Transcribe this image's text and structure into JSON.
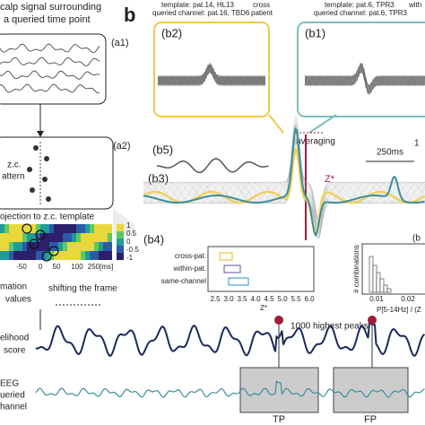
{
  "texts": {
    "a_head1": "calp signal surrounding",
    "a_head2": "a queried time point",
    "a1": "(a1)",
    "a2": "(a2)",
    "zc1": "z.c.",
    "zc2": "attern",
    "proj": "ojection to z.c. template",
    "cb": [
      "1",
      "0.5",
      "0",
      "-0.5",
      "-1"
    ],
    "hm_ticks": [
      "-50",
      "0",
      "50",
      "100",
      "250[ms]"
    ],
    "mat1": "mation",
    "mat2": "values",
    "shift": "shifting the frame",
    "lik1": "elihood",
    "lik2": "score",
    "eeg1": "EEG",
    "eeg2": "ueried",
    "eeg3": "hannel",
    "b": "b",
    "tpl_l1": "template: pat.14, HL13",
    "tpl_l2": "queried channel: pat.16, TBD6",
    "cross1": "cross",
    "cross2": "patient",
    "tpl_r1": "template: pat.6, TPR3",
    "tpl_r2": "queried channel: pat.6, TPR3",
    "with": "with",
    "b2": "(b2)",
    "b1": "(b1)",
    "averaging": "averaging",
    "b5": "(b5)",
    "zstar": "Z*",
    "ms250": "250ms",
    "one": "1",
    "b3": "(b3)",
    "b4": "(b4)",
    "box_labels": [
      "cross-pat.",
      "within-pat.",
      "same-channel"
    ],
    "box_ticks": [
      "2.5",
      "3.0",
      "3.5",
      "4.0",
      "4.5",
      "5.0",
      "5.5",
      "6.0"
    ],
    "box_xlabel": "Z*",
    "b6": "(b",
    "hist_ylabel": "# combinations",
    "hist_ticks": [
      "0.01",
      "0.02"
    ],
    "hist_xlabel": "P[5-14Hz] / (Z",
    "peaks": "1000 highest peaks",
    "tp": "TP",
    "fp": "FP"
  }
}
